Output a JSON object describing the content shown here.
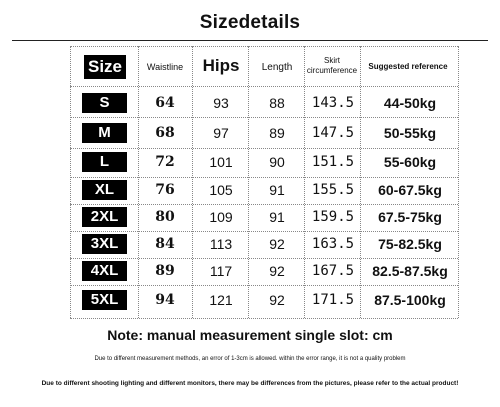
{
  "title": "Sizedetails",
  "table": {
    "headers": {
      "size": "Size",
      "waistline": "Waistline",
      "hips": "Hips",
      "length": "Length",
      "skirt_line1": "Skirt",
      "skirt_line2": "circumference",
      "suggested": "Suggested reference"
    },
    "rows": [
      {
        "size": "S",
        "waistline": "64",
        "hips": "93",
        "length": "88",
        "skirt": "143.5",
        "suggested": "44-50kg"
      },
      {
        "size": "M",
        "waistline": "68",
        "hips": "97",
        "length": "89",
        "skirt": "147.5",
        "suggested": "50-55kg"
      },
      {
        "size": "L",
        "waistline": "72",
        "hips": "101",
        "length": "90",
        "skirt": "151.5",
        "suggested": "55-60kg"
      },
      {
        "size": "XL",
        "waistline": "76",
        "hips": "105",
        "length": "91",
        "skirt": "155.5",
        "suggested": "60-67.5kg"
      },
      {
        "size": "2XL",
        "waistline": "80",
        "hips": "109",
        "length": "91",
        "skirt": "159.5",
        "suggested": "67.5-75kg"
      },
      {
        "size": "3XL",
        "waistline": "84",
        "hips": "113",
        "length": "92",
        "skirt": "163.5",
        "suggested": "75-82.5kg"
      },
      {
        "size": "4XL",
        "waistline": "89",
        "hips": "117",
        "length": "92",
        "skirt": "167.5",
        "suggested": "82.5-87.5kg"
      },
      {
        "size": "5XL",
        "waistline": "94",
        "hips": "121",
        "length": "92",
        "skirt": "171.5",
        "suggested": "87.5-100kg"
      }
    ]
  },
  "note": "Note: manual measurement single slot: cm",
  "disclaimer1": "Due to different measurement methods, an error of 1-3cm is allowed. within the error range, it is not a quality problem",
  "disclaimer2": "Due to different shooting lighting and different monitors, there may be differences from the pictures, please refer to the actual product!"
}
